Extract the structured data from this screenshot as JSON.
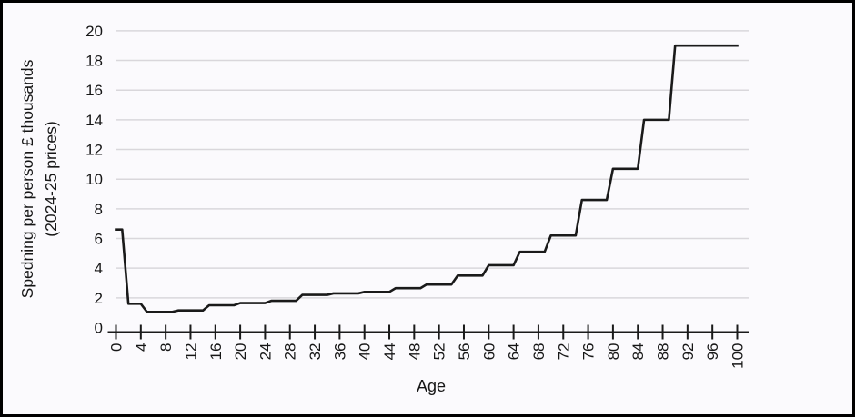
{
  "chart_data": {
    "type": "line",
    "style": "stepped yearly line, single black series, no legend",
    "title": "",
    "ylabel_line1": "Spedning per person £ thousands",
    "ylabel_line2": "(2024-25 prices)",
    "xlabel": "Age",
    "x_ticks": [
      0,
      4,
      8,
      12,
      16,
      20,
      24,
      28,
      32,
      36,
      40,
      44,
      48,
      52,
      56,
      60,
      64,
      68,
      72,
      76,
      80,
      84,
      88,
      92,
      96,
      100
    ],
    "y_ticks": [
      0,
      2,
      4,
      6,
      8,
      10,
      12,
      14,
      16,
      18,
      20
    ],
    "xlim": [
      0,
      100
    ],
    "ylim": [
      0,
      20
    ],
    "grid": "horizontal light gray lines at each y tick",
    "series_bands": [
      {
        "from": 0,
        "to": 1,
        "value": 6.6
      },
      {
        "from": 2,
        "to": 4,
        "value": 1.6
      },
      {
        "from": 5,
        "to": 9,
        "value": 1.05
      },
      {
        "from": 10,
        "to": 14,
        "value": 1.15
      },
      {
        "from": 15,
        "to": 19,
        "value": 1.5
      },
      {
        "from": 20,
        "to": 24,
        "value": 1.65
      },
      {
        "from": 25,
        "to": 29,
        "value": 1.8
      },
      {
        "from": 30,
        "to": 34,
        "value": 2.2
      },
      {
        "from": 35,
        "to": 39,
        "value": 2.3
      },
      {
        "from": 40,
        "to": 44,
        "value": 2.4
      },
      {
        "from": 45,
        "to": 49,
        "value": 2.65
      },
      {
        "from": 50,
        "to": 54,
        "value": 2.9
      },
      {
        "from": 55,
        "to": 59,
        "value": 3.5
      },
      {
        "from": 60,
        "to": 64,
        "value": 4.2
      },
      {
        "from": 65,
        "to": 69,
        "value": 5.1
      },
      {
        "from": 70,
        "to": 74,
        "value": 6.2
      },
      {
        "from": 75,
        "to": 79,
        "value": 8.6
      },
      {
        "from": 80,
        "to": 84,
        "value": 10.7
      },
      {
        "from": 85,
        "to": 89,
        "value": 14.0
      },
      {
        "from": 90,
        "to": 100,
        "value": 19.0
      }
    ],
    "colors": {
      "line": "#1a1a1a",
      "axis": "#1a1a1a",
      "gridline": "#d9d7db",
      "background": "#fbfafd",
      "border": "#000000",
      "text": "#161616"
    }
  }
}
